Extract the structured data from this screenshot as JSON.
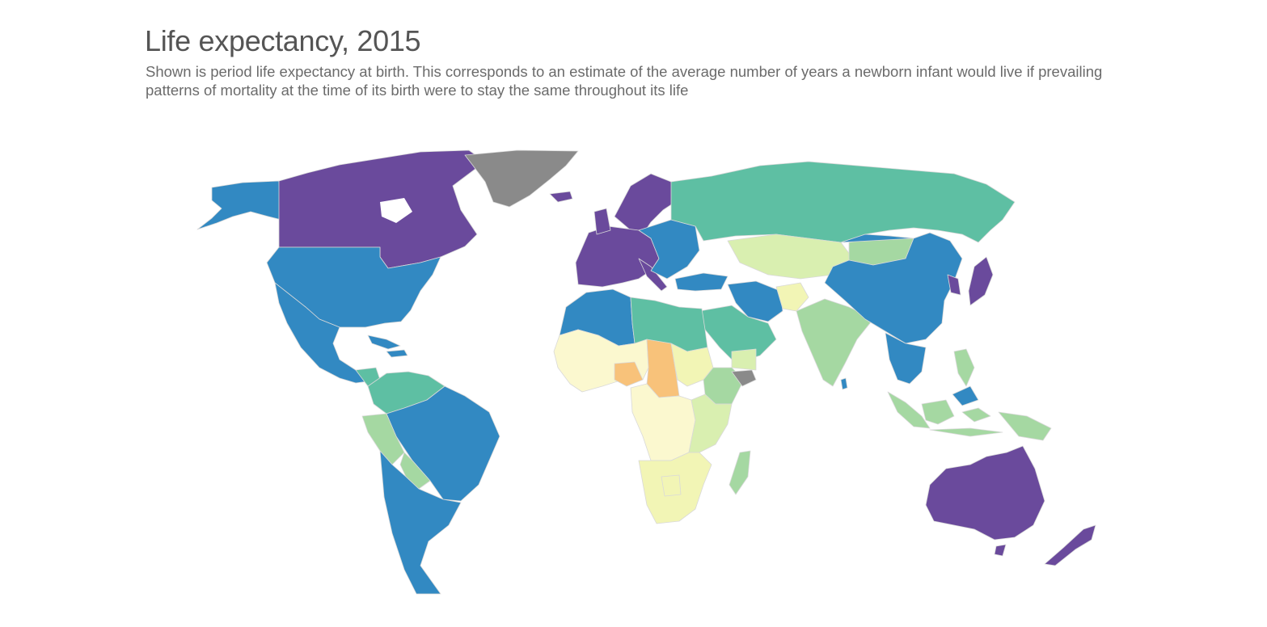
{
  "title": "Life expectancy, 2015",
  "subtitle": "Shown is period life expectancy at birth. This corresponds to an estimate of the average number of years a newborn infant would live if prevailing patterns of mortality at the time of its birth were to stay the same throughout its life",
  "colors": {
    "purple": "#6a4a9c",
    "blue": "#3289c2",
    "teal": "#5ebfa3",
    "green": "#a5d8a2",
    "pale_green": "#d9efb0",
    "pale_yellow": "#f2f5b5",
    "cream": "#fbf8cf",
    "orange": "#f8c27a",
    "no_data": "#8a8a8a"
  },
  "regions": [
    {
      "name": "Canada",
      "color": "purple"
    },
    {
      "name": "Greenland",
      "color": "no_data"
    },
    {
      "name": "Alaska",
      "color": "blue"
    },
    {
      "name": "United States",
      "color": "blue"
    },
    {
      "name": "Mexico",
      "color": "blue"
    },
    {
      "name": "Central America",
      "color": "teal"
    },
    {
      "name": "Caribbean",
      "color": "blue"
    },
    {
      "name": "Brazil",
      "color": "blue"
    },
    {
      "name": "Colombia & Venezuela",
      "color": "teal"
    },
    {
      "name": "Peru",
      "color": "green"
    },
    {
      "name": "Bolivia",
      "color": "green"
    },
    {
      "name": "Argentina & Chile",
      "color": "blue"
    },
    {
      "name": "Western Europe",
      "color": "purple"
    },
    {
      "name": "Scandinavia",
      "color": "purple"
    },
    {
      "name": "Iceland",
      "color": "purple"
    },
    {
      "name": "Eastern Europe",
      "color": "blue"
    },
    {
      "name": "Russia",
      "color": "teal"
    },
    {
      "name": "Central Asia",
      "color": "pale_green"
    },
    {
      "name": "Turkey",
      "color": "blue"
    },
    {
      "name": "Iran",
      "color": "blue"
    },
    {
      "name": "Afghanistan",
      "color": "pale_yellow"
    },
    {
      "name": "Arabian Peninsula",
      "color": "teal"
    },
    {
      "name": "South Asia",
      "color": "green"
    },
    {
      "name": "China",
      "color": "blue"
    },
    {
      "name": "Mongolia",
      "color": "green"
    },
    {
      "name": "Japan",
      "color": "purple"
    },
    {
      "name": "Korea",
      "color": "purple"
    },
    {
      "name": "Southeast Asia",
      "color": "blue"
    },
    {
      "name": "Indonesia",
      "color": "green"
    },
    {
      "name": "Philippines",
      "color": "green"
    },
    {
      "name": "Morocco & Algeria",
      "color": "blue"
    },
    {
      "name": "Libya & Egypt",
      "color": "teal"
    },
    {
      "name": "West Africa",
      "color": "cream"
    },
    {
      "name": "Nigeria",
      "color": "orange"
    },
    {
      "name": "Chad & CAR",
      "color": "orange"
    },
    {
      "name": "Sudan",
      "color": "pale_yellow"
    },
    {
      "name": "Ethiopia",
      "color": "green"
    },
    {
      "name": "Somalia",
      "color": "no_data"
    },
    {
      "name": "Central Africa",
      "color": "cream"
    },
    {
      "name": "East Africa",
      "color": "pale_green"
    },
    {
      "name": "Southern Africa",
      "color": "pale_yellow"
    },
    {
      "name": "Madagascar",
      "color": "green"
    },
    {
      "name": "Australia",
      "color": "purple"
    },
    {
      "name": "New Zealand",
      "color": "purple"
    },
    {
      "name": "Papua New Guinea",
      "color": "green"
    }
  ]
}
